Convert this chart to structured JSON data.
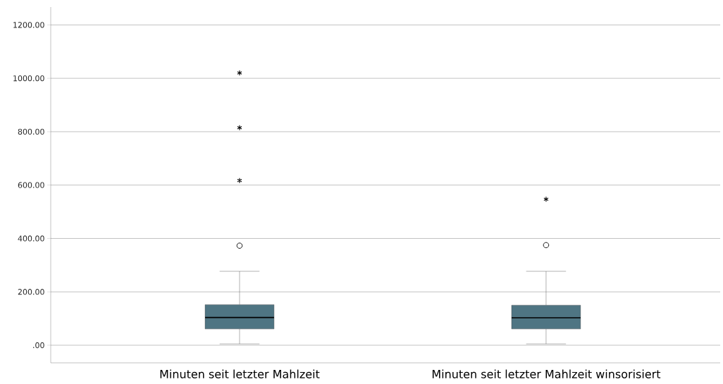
{
  "chart_data": {
    "type": "box",
    "categories": [
      "Minuten seit letzter Mahlzeit",
      "Minuten seit letzter Mahlzeit winsorisiert"
    ],
    "boxes": [
      {
        "low": 5,
        "q1": 61,
        "median": 104,
        "q3": 152,
        "high": 277,
        "outliers": [
          373,
          617,
          815,
          1020
        ]
      },
      {
        "low": 5,
        "q1": 61,
        "median": 103,
        "q3": 150,
        "high": 277,
        "outliers": [
          375,
          547
        ]
      }
    ],
    "color": "#4f7583",
    "ylim": [
      -66,
      1267
    ],
    "yticks": [
      {
        "value": 0,
        "label": ".00"
      },
      {
        "value": 200,
        "label": "200.00"
      },
      {
        "value": 400,
        "label": "400.00"
      },
      {
        "value": 600,
        "label": "600.00"
      },
      {
        "value": 800,
        "label": "800.00"
      },
      {
        "value": 1000,
        "label": "1000.00"
      },
      {
        "value": 1200,
        "label": "1200.00"
      }
    ],
    "grid": "y"
  }
}
